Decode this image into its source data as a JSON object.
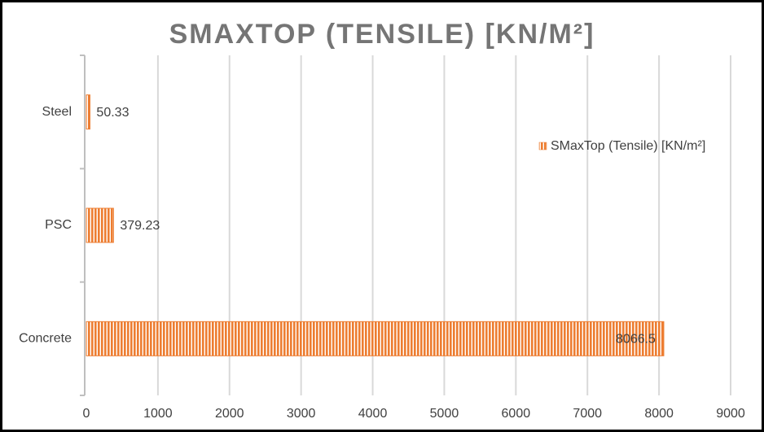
{
  "chart_data": {
    "type": "bar",
    "orientation": "horizontal",
    "title": "SMAXTOP (TENSILE) [KN/M²]",
    "categories": [
      "Steel",
      "PSC",
      "Concrete"
    ],
    "series": [
      {
        "name": "SMaxTop (Tensile) [KN/m²]",
        "color": "#ed7d31",
        "values": [
          50.33,
          379.23,
          8066.5
        ]
      }
    ],
    "xlim": [
      0,
      9000
    ],
    "xticks": [
      0,
      1000,
      2000,
      3000,
      4000,
      5000,
      6000,
      7000,
      8000,
      9000
    ],
    "grid": true,
    "legend": "right"
  }
}
